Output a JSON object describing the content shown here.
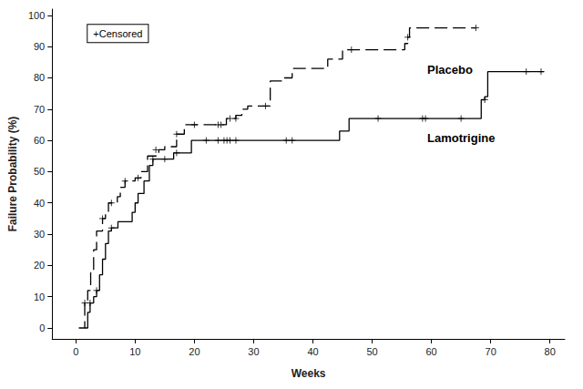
{
  "chart_data": {
    "type": "step",
    "x_label": "Weeks",
    "y_label": "Failure Probability (%)",
    "xlim": [
      -4,
      82.5
    ],
    "ylim": [
      -3.5,
      102
    ],
    "xticks": [
      0,
      10,
      20,
      30,
      40,
      50,
      60,
      70,
      80
    ],
    "yticks": [
      0,
      10,
      20,
      30,
      40,
      50,
      60,
      70,
      80,
      90,
      100
    ],
    "grid": false,
    "series": [
      {
        "name": "Placebo",
        "color": "#000000",
        "line_style": "dashed",
        "marker": "plus",
        "x": [
          0.5,
          1.5,
          2,
          2.5,
          3,
          3.5,
          4.5,
          5,
          5.5,
          7,
          7.5,
          8.3,
          10,
          11,
          12.1,
          14,
          15,
          17,
          18.3,
          25.4,
          27,
          28,
          29,
          32.8,
          35,
          36.5,
          42.5,
          45,
          55.5,
          56,
          56.3,
          67.5
        ],
        "values": [
          0,
          8,
          12,
          18,
          25,
          31,
          35,
          37,
          40,
          42,
          45,
          47,
          48,
          50,
          55,
          57,
          58,
          62,
          65,
          67,
          68,
          70,
          71,
          79,
          80,
          83,
          86,
          89,
          91,
          93,
          96,
          96
        ],
        "censored_x": [
          1.5,
          4.5,
          6,
          8.3,
          10.5,
          13.5,
          17,
          20,
          24,
          24.5,
          26,
          27,
          32,
          46.5,
          56,
          67.5
        ],
        "censored_values": [
          8,
          35,
          40,
          47,
          48,
          57,
          62,
          65,
          65,
          65,
          67,
          67,
          71,
          89,
          93,
          96
        ]
      },
      {
        "name": "Lamotrigine",
        "color": "#000000",
        "line_style": "solid",
        "marker": "plus",
        "x": [
          1.5,
          2,
          2.4,
          3,
          3.5,
          4,
          4.5,
          5,
          5.5,
          6,
          7.1,
          9.5,
          10,
          10.5,
          11.5,
          12.4,
          13,
          16.5,
          19.5,
          44.5,
          46.1,
          68.4,
          69,
          69.5,
          79
        ],
        "values": [
          0,
          5,
          8,
          10,
          12,
          17,
          22,
          27,
          31,
          32,
          34,
          37,
          40,
          43,
          47,
          52,
          54,
          56,
          60,
          63,
          67,
          73,
          74,
          82,
          82
        ],
        "censored_x": [
          2.4,
          3.5,
          6,
          13,
          15,
          17,
          22,
          24,
          25,
          25.5,
          26,
          27,
          35.5,
          36.5,
          51,
          58.5,
          59,
          65,
          69,
          76,
          78.5
        ],
        "censored_values": [
          8,
          12,
          32,
          54,
          54,
          56,
          60,
          60,
          60,
          60,
          60,
          60,
          60,
          60,
          67,
          67,
          67,
          67,
          73,
          82,
          82
        ]
      }
    ],
    "annotations": [
      {
        "text": "+Censored",
        "x": 2,
        "y": 94.2,
        "box": true
      },
      {
        "text": "Placebo",
        "x": 59.3,
        "y": 82.5
      },
      {
        "text": "Lamotrigine",
        "x": 59.3,
        "y": 60.8
      }
    ]
  }
}
